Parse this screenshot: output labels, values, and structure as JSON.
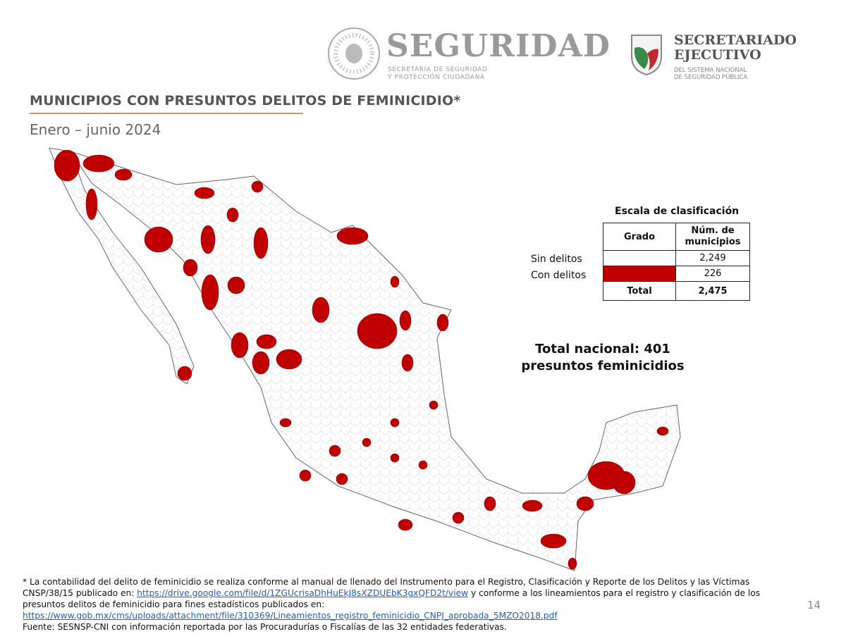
{
  "header": {
    "logo_left": {
      "title": "SEGURIDAD",
      "subtitle_lines": [
        "SECRETARÍA DE SEGURIDAD",
        "Y PROTECCIÓN CIUDADANA"
      ]
    },
    "logo_right": {
      "title_lines": [
        "SECRETARIADO",
        "EJECUTIVO"
      ],
      "subtitle_lines": [
        "DEL SISTEMA NACIONAL",
        "DE SEGURIDAD PÚBLICA"
      ]
    }
  },
  "title": "MUNICIPIOS CON PRESUNTOS DELITOS DE FEMINICIDIO*",
  "subtitle": "Enero – junio 2024",
  "legend": {
    "title": "Escala de clasificación",
    "columns": [
      "Grado",
      "Núm. de municipios"
    ],
    "rows": [
      {
        "label": "Sin delitos",
        "color": "#ffffff",
        "count": "2,249"
      },
      {
        "label": "Con delitos",
        "color": "#c00000",
        "count": "226"
      },
      {
        "label": "Total",
        "count": "2,475"
      }
    ]
  },
  "total_lines": [
    "Total nacional: 401",
    "presuntos feminicidios"
  ],
  "footnote": {
    "text_1": "* La contabilidad del delito de feminicidio se realiza conforme al manual de llenado del Instrumento para el Registro, Clasificación y Reporte de los Delitos y las Víctimas CNSP/38/15 publicado en: ",
    "link_1": "https://drive.google.com/file/d/1ZGUcrisaDhHuEkJ8sXZDUEbK3gxQFD2t/view",
    "text_2": " y conforme a los lineamientos para el registro y clasificación de los presuntos delitos de feminicidio para fines estadísticos publicados en: ",
    "link_2": "https://www.gob.mx/cms/uploads/attachment/file/310369/Lineamientos_registro_feminicidio_CNPJ_aprobada_5MZO2018.pdf",
    "source": "Fuente: SESNSP-CNI con información reportada por las Procuradurías o Fiscalías de las 32 entidades federativas."
  },
  "page_number": "14"
}
